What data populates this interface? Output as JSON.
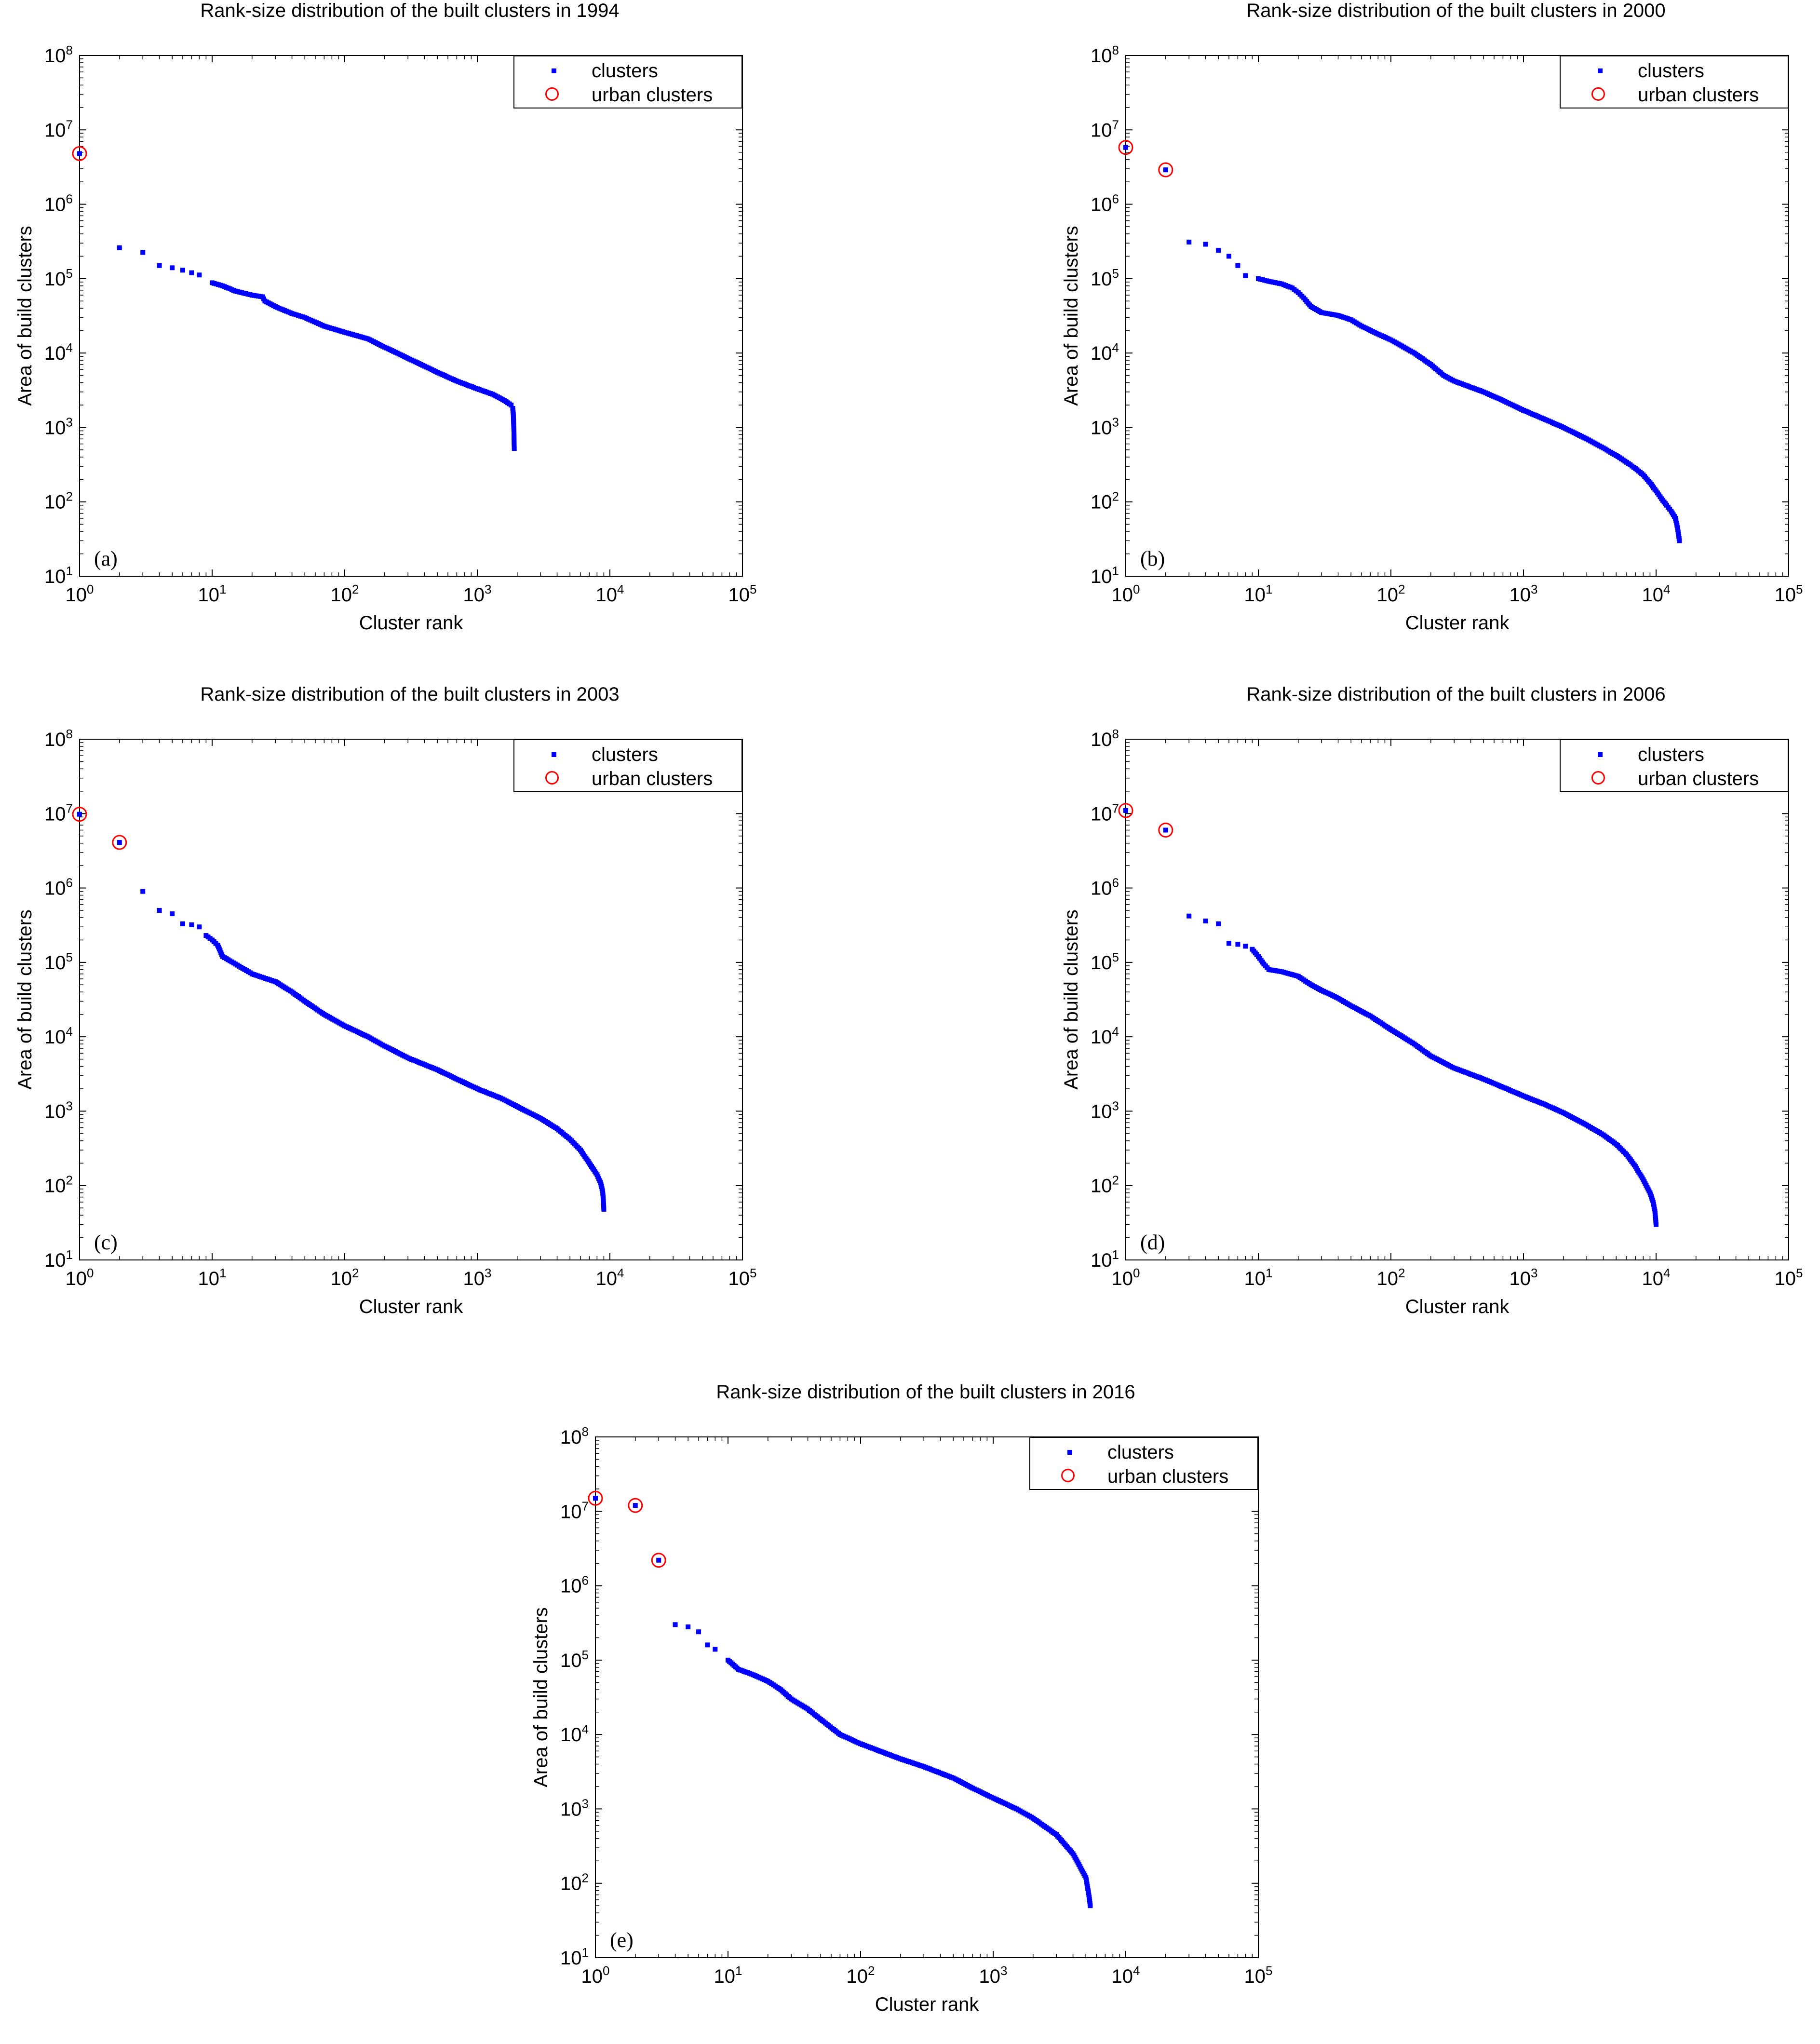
{
  "chart_data": [
    {
      "type": "scatter",
      "title": "Rank-size distribution of the built clusters in 1994",
      "xlabel": "Cluster rank",
      "ylabel": "Area of build clusters",
      "panel_label": "(a)",
      "xscale": "log",
      "yscale": "log",
      "xlim": [
        1,
        100000
      ],
      "ylim": [
        10,
        100000000
      ],
      "x_ticks": [
        "10^0",
        "10^1",
        "10^2",
        "10^3",
        "10^4",
        "10^5"
      ],
      "y_ticks": [
        "10^1",
        "10^2",
        "10^3",
        "10^4",
        "10^5",
        "10^6",
        "10^7",
        "10^8"
      ],
      "legend": {
        "position": "top-right",
        "entries": [
          "clusters",
          "urban clusters"
        ]
      },
      "series": [
        {
          "name": "clusters",
          "color": "#0000ff",
          "marker": "dot",
          "points": [
            [
              1,
              4800000
            ],
            [
              2,
              260000
            ],
            [
              3,
              225000
            ],
            [
              4,
              150000
            ],
            [
              5,
              140000
            ],
            [
              6,
              130000
            ],
            [
              7,
              120000
            ],
            [
              8,
              112000
            ],
            [
              10,
              88000
            ],
            [
              12,
              80000
            ],
            [
              15,
              68000
            ],
            [
              20,
              60000
            ],
            [
              24,
              57000
            ],
            [
              25,
              50000
            ],
            [
              30,
              42000
            ],
            [
              40,
              34000
            ],
            [
              50,
              30000
            ],
            [
              70,
              23000
            ],
            [
              100,
              19000
            ],
            [
              150,
              15500
            ],
            [
              200,
              12000
            ],
            [
              300,
              8500
            ],
            [
              500,
              5500
            ],
            [
              700,
              4200
            ],
            [
              1000,
              3300
            ],
            [
              1300,
              2800
            ],
            [
              1600,
              2300
            ],
            [
              1800,
              2000
            ],
            [
              1850,
              1800
            ],
            [
              1870,
              1500
            ],
            [
              1880,
              1100
            ],
            [
              1890,
              900
            ],
            [
              1895,
              600
            ],
            [
              1900,
              520
            ]
          ]
        },
        {
          "name": "urban clusters",
          "color": "#ff0000",
          "marker": "circle",
          "points": [
            [
              1,
              4800000
            ]
          ]
        }
      ]
    },
    {
      "type": "scatter",
      "title": "Rank-size distribution of the built clusters in 2000",
      "xlabel": "Cluster rank",
      "ylabel": "Area of build clusters",
      "panel_label": "(b)",
      "xscale": "log",
      "yscale": "log",
      "xlim": [
        1,
        100000
      ],
      "ylim": [
        10,
        100000000
      ],
      "x_ticks": [
        "10^0",
        "10^1",
        "10^2",
        "10^3",
        "10^4",
        "10^5"
      ],
      "y_ticks": [
        "10^1",
        "10^2",
        "10^3",
        "10^4",
        "10^5",
        "10^6",
        "10^7",
        "10^8"
      ],
      "legend": {
        "position": "top-right",
        "entries": [
          "clusters",
          "urban clusters"
        ]
      },
      "series": [
        {
          "name": "clusters",
          "color": "#0000ff",
          "marker": "dot",
          "points": [
            [
              1,
              5800000
            ],
            [
              2,
              2900000
            ],
            [
              3,
              310000
            ],
            [
              4,
              290000
            ],
            [
              5,
              240000
            ],
            [
              6,
              200000
            ],
            [
              7,
              150000
            ],
            [
              8,
              110000
            ],
            [
              10,
              100000
            ],
            [
              12,
              92000
            ],
            [
              15,
              85000
            ],
            [
              18,
              75000
            ],
            [
              20,
              65000
            ],
            [
              22,
              55000
            ],
            [
              25,
              42000
            ],
            [
              30,
              35000
            ],
            [
              40,
              32000
            ],
            [
              50,
              28000
            ],
            [
              60,
              23000
            ],
            [
              80,
              18000
            ],
            [
              100,
              15000
            ],
            [
              150,
              10000
            ],
            [
              200,
              7000
            ],
            [
              250,
              5000
            ],
            [
              300,
              4200
            ],
            [
              500,
              3000
            ],
            [
              700,
              2300
            ],
            [
              1000,
              1700
            ],
            [
              1500,
              1250
            ],
            [
              2000,
              1000
            ],
            [
              3000,
              700
            ],
            [
              4000,
              530
            ],
            [
              5000,
              420
            ],
            [
              6000,
              340
            ],
            [
              7000,
              280
            ],
            [
              8000,
              230
            ],
            [
              9000,
              180
            ],
            [
              10000,
              140
            ],
            [
              11000,
              110
            ],
            [
              12000,
              90
            ],
            [
              13000,
              75
            ],
            [
              14000,
              60
            ],
            [
              14500,
              45
            ],
            [
              15000,
              30
            ]
          ]
        },
        {
          "name": "urban clusters",
          "color": "#ff0000",
          "marker": "circle",
          "points": [
            [
              1,
              5800000
            ],
            [
              2,
              2900000
            ]
          ]
        }
      ]
    },
    {
      "type": "scatter",
      "title": "Rank-size distribution of the built clusters in 2003",
      "xlabel": "Cluster rank",
      "ylabel": "Area of build clusters",
      "panel_label": "(c)",
      "xscale": "log",
      "yscale": "log",
      "xlim": [
        1,
        100000
      ],
      "ylim": [
        10,
        100000000
      ],
      "x_ticks": [
        "10^0",
        "10^1",
        "10^2",
        "10^3",
        "10^4",
        "10^5"
      ],
      "y_ticks": [
        "10^1",
        "10^2",
        "10^3",
        "10^4",
        "10^5",
        "10^6",
        "10^7",
        "10^8"
      ],
      "legend": {
        "position": "top-right",
        "entries": [
          "clusters",
          "urban clusters"
        ]
      },
      "series": [
        {
          "name": "clusters",
          "color": "#0000ff",
          "marker": "dot",
          "points": [
            [
              1,
              9800000
            ],
            [
              2,
              4100000
            ],
            [
              3,
              900000
            ],
            [
              4,
              500000
            ],
            [
              5,
              450000
            ],
            [
              6,
              330000
            ],
            [
              7,
              320000
            ],
            [
              8,
              300000
            ],
            [
              9,
              230000
            ],
            [
              10,
              200000
            ],
            [
              11,
              170000
            ],
            [
              12,
              120000
            ],
            [
              15,
              95000
            ],
            [
              20,
              70000
            ],
            [
              30,
              55000
            ],
            [
              40,
              40000
            ],
            [
              50,
              30000
            ],
            [
              70,
              20000
            ],
            [
              100,
              14000
            ],
            [
              150,
              10000
            ],
            [
              200,
              7500
            ],
            [
              300,
              5200
            ],
            [
              500,
              3600
            ],
            [
              700,
              2700
            ],
            [
              1000,
              2000
            ],
            [
              1500,
              1500
            ],
            [
              2000,
              1150
            ],
            [
              3000,
              800
            ],
            [
              4000,
              580
            ],
            [
              5000,
              420
            ],
            [
              6000,
              300
            ],
            [
              7000,
              200
            ],
            [
              8000,
              140
            ],
            [
              8500,
              110
            ],
            [
              8800,
              85
            ],
            [
              8900,
              70
            ],
            [
              9000,
              48
            ]
          ]
        },
        {
          "name": "urban clusters",
          "color": "#ff0000",
          "marker": "circle",
          "points": [
            [
              1,
              9800000
            ],
            [
              2,
              4100000
            ]
          ]
        }
      ]
    },
    {
      "type": "scatter",
      "title": "Rank-size distribution of the built clusters in 2006",
      "xlabel": "Cluster rank",
      "ylabel": "Area of build clusters",
      "panel_label": "(d)",
      "xscale": "log",
      "yscale": "log",
      "xlim": [
        1,
        100000
      ],
      "ylim": [
        10,
        100000000
      ],
      "x_ticks": [
        "10^0",
        "10^1",
        "10^2",
        "10^3",
        "10^4",
        "10^5"
      ],
      "y_ticks": [
        "10^1",
        "10^2",
        "10^3",
        "10^4",
        "10^5",
        "10^6",
        "10^7",
        "10^8"
      ],
      "legend": {
        "position": "top-right",
        "entries": [
          "clusters",
          "urban clusters"
        ]
      },
      "series": [
        {
          "name": "clusters",
          "color": "#0000ff",
          "marker": "dot",
          "points": [
            [
              1,
              11000000
            ],
            [
              2,
              6000000
            ],
            [
              3,
              420000
            ],
            [
              4,
              360000
            ],
            [
              5,
              330000
            ],
            [
              6,
              180000
            ],
            [
              7,
              175000
            ],
            [
              8,
              165000
            ],
            [
              9,
              150000
            ],
            [
              10,
              120000
            ],
            [
              11,
              95000
            ],
            [
              12,
              80000
            ],
            [
              15,
              75000
            ],
            [
              20,
              65000
            ],
            [
              25,
              50000
            ],
            [
              30,
              42000
            ],
            [
              40,
              33000
            ],
            [
              50,
              26000
            ],
            [
              70,
              19000
            ],
            [
              100,
              12500
            ],
            [
              150,
              8000
            ],
            [
              200,
              5500
            ],
            [
              300,
              3800
            ],
            [
              500,
              2700
            ],
            [
              700,
              2100
            ],
            [
              1000,
              1600
            ],
            [
              1500,
              1200
            ],
            [
              2000,
              950
            ],
            [
              3000,
              650
            ],
            [
              4000,
              480
            ],
            [
              5000,
              360
            ],
            [
              6000,
              260
            ],
            [
              7000,
              180
            ],
            [
              8000,
              120
            ],
            [
              9000,
              80
            ],
            [
              9500,
              60
            ],
            [
              9800,
              45
            ],
            [
              10000,
              30
            ]
          ]
        },
        {
          "name": "urban clusters",
          "color": "#ff0000",
          "marker": "circle",
          "points": [
            [
              1,
              11000000
            ],
            [
              2,
              6000000
            ]
          ]
        }
      ]
    },
    {
      "type": "scatter",
      "title": "Rank-size distribution of the built clusters in 2016",
      "xlabel": "Cluster rank",
      "ylabel": "Area of build clusters",
      "panel_label": "(e)",
      "xscale": "log",
      "yscale": "log",
      "xlim": [
        1,
        100000
      ],
      "ylim": [
        10,
        100000000
      ],
      "x_ticks": [
        "10^0",
        "10^1",
        "10^2",
        "10^3",
        "10^4",
        "10^5"
      ],
      "y_ticks": [
        "10^1",
        "10^2",
        "10^3",
        "10^4",
        "10^5",
        "10^6",
        "10^7",
        "10^8"
      ],
      "legend": {
        "position": "top-right",
        "entries": [
          "clusters",
          "urban clusters"
        ]
      },
      "series": [
        {
          "name": "clusters",
          "color": "#0000ff",
          "marker": "dot",
          "points": [
            [
              1,
              15000000
            ],
            [
              2,
              12000000
            ],
            [
              3,
              2200000
            ],
            [
              4,
              300000
            ],
            [
              5,
              280000
            ],
            [
              6,
              240000
            ],
            [
              7,
              160000
            ],
            [
              8,
              140000
            ],
            [
              10,
              100000
            ],
            [
              12,
              75000
            ],
            [
              15,
              65000
            ],
            [
              20,
              52000
            ],
            [
              25,
              40000
            ],
            [
              30,
              30000
            ],
            [
              40,
              22000
            ],
            [
              50,
              16000
            ],
            [
              70,
              10000
            ],
            [
              100,
              7500
            ],
            [
              150,
              5700
            ],
            [
              200,
              4700
            ],
            [
              300,
              3700
            ],
            [
              500,
              2600
            ],
            [
              700,
              1900
            ],
            [
              1000,
              1400
            ],
            [
              1500,
              1000
            ],
            [
              2000,
              750
            ],
            [
              3000,
              450
            ],
            [
              4000,
              250
            ],
            [
              5000,
              120
            ],
            [
              5200,
              80
            ],
            [
              5300,
              65
            ],
            [
              5400,
              50
            ]
          ]
        },
        {
          "name": "urban clusters",
          "color": "#ff0000",
          "marker": "circle",
          "points": [
            [
              1,
              15000000
            ],
            [
              2,
              12000000
            ],
            [
              3,
              2200000
            ]
          ]
        }
      ]
    }
  ]
}
